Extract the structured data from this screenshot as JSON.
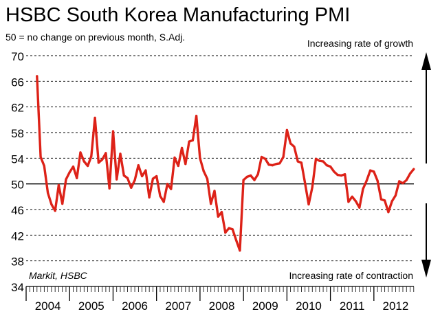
{
  "chart_data": {
    "type": "line",
    "title": "HSBC South Korea Manufacturing PMI",
    "subtitle": "50 = no change on previous month, S.Adj.",
    "source": "Markit, HSBC",
    "annotations": {
      "top": "Increasing rate of growth",
      "bottom": "Increasing rate of contraction"
    },
    "reference_line": 50,
    "ylim": [
      34,
      70
    ],
    "yticks": [
      70,
      66,
      62,
      58,
      54,
      50,
      46,
      42,
      38,
      34
    ],
    "x_start": 2004.0,
    "x_end": 2012.92,
    "x_tick_labels": [
      "2004",
      "2005",
      "2006",
      "2007",
      "2008",
      "2009",
      "2010",
      "2011",
      "2012"
    ],
    "series": [
      {
        "name": "South Korea Manufacturing PMI",
        "color": "#dd2218",
        "start": "2004-04",
        "values": [
          66.8,
          54.2,
          52.8,
          48.6,
          46.8,
          45.8,
          49.8,
          46.9,
          50.7,
          51.8,
          52.7,
          50.9,
          54.9,
          53.5,
          52.8,
          54.3,
          60.3,
          53.3,
          53.8,
          54.8,
          49.3,
          58.2,
          50.7,
          54.7,
          51.3,
          50.9,
          49.4,
          50.6,
          52.9,
          51.2,
          52.1,
          47.9,
          50.8,
          51.2,
          48.1,
          47.2,
          50.0,
          49.2,
          54.1,
          52.8,
          55.6,
          53.1,
          56.6,
          56.8,
          60.6,
          54.0,
          52.0,
          50.8,
          46.9,
          48.9,
          44.9,
          45.6,
          42.4,
          43.1,
          42.9,
          41.2,
          39.6,
          50.6,
          51.1,
          51.3,
          50.6,
          51.5,
          54.2,
          53.9,
          53.0,
          52.9,
          53.1,
          53.2,
          54.2,
          58.4,
          56.3,
          55.8,
          53.5,
          53.3,
          50.1,
          46.8,
          49.5,
          53.9,
          53.6,
          53.5,
          52.9,
          52.7,
          51.9,
          51.4,
          51.3,
          51.5,
          47.2,
          48.0,
          47.3,
          46.3,
          49.2,
          50.5,
          52.1,
          51.9,
          50.5,
          47.6,
          47.4,
          45.6,
          47.3,
          48.2,
          50.4,
          50.1,
          50.6,
          51.6,
          52.3
        ]
      }
    ]
  }
}
